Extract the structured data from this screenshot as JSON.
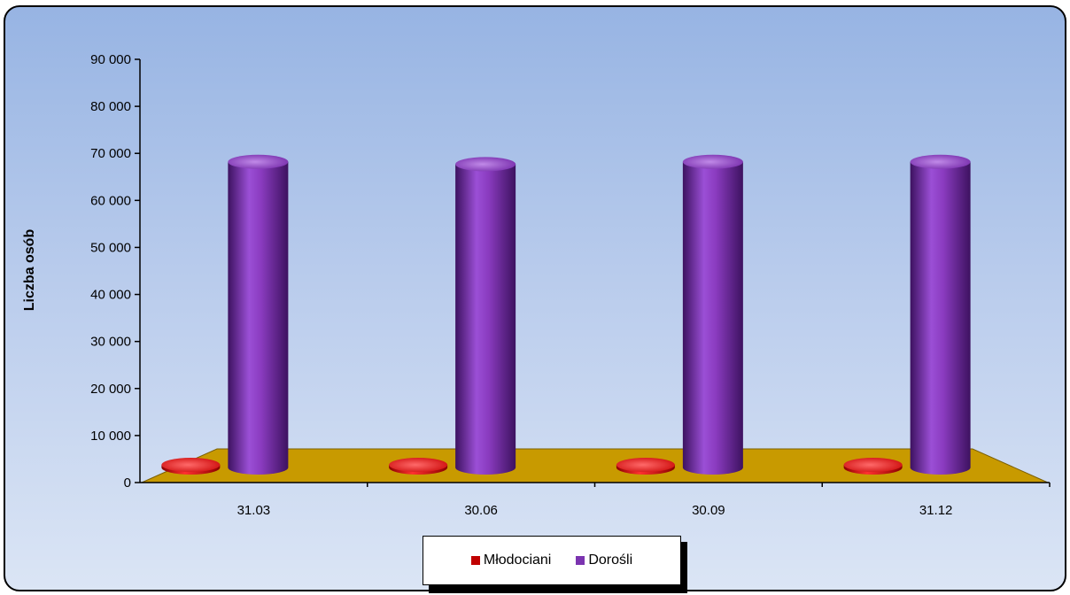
{
  "chart_data": {
    "type": "bar",
    "style": "3d-cylinder",
    "ylabel": "Liczba osób",
    "xlabel": "",
    "ylim": [
      0,
      90000
    ],
    "y_ticks": [
      "0",
      "10 000",
      "20 000",
      "30 000",
      "40 000",
      "50 000",
      "60 000",
      "70 000",
      "80 000",
      "90 000"
    ],
    "categories": [
      "31.03",
      "30.06",
      "30.09",
      "31.12"
    ],
    "series": [
      {
        "name": "Młodociani",
        "color": "#e01010",
        "values": [
          400,
          400,
          400,
          400
        ]
      },
      {
        "name": "Dorośli",
        "color": "#8a3bbf",
        "values": [
          65000,
          64500,
          65000,
          65000
        ]
      }
    ],
    "legend_position": "bottom",
    "grid": false,
    "floor_color": "#c89a00",
    "background": "gradient-blue"
  }
}
